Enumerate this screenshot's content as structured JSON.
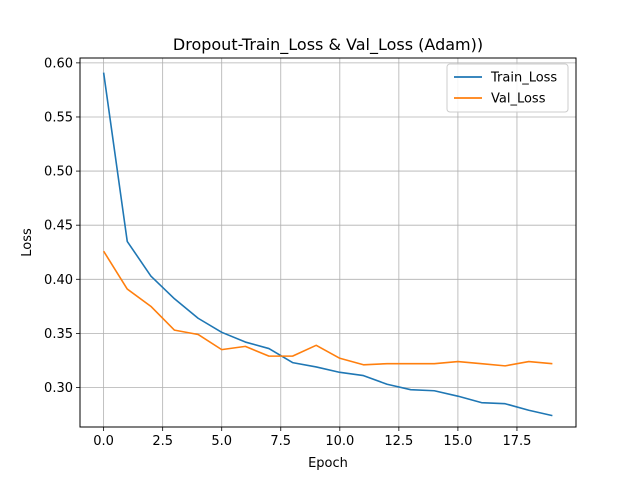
{
  "chart_data": {
    "type": "line",
    "title": "Dropout-Train_Loss & Val_Loss (Adam))",
    "xlabel": "Epoch",
    "ylabel": "Loss",
    "xlim": [
      -1.0,
      20.0
    ],
    "ylim": [
      0.2635,
      0.6045
    ],
    "xticks": [
      0.0,
      2.5,
      5.0,
      7.5,
      10.0,
      12.5,
      15.0,
      17.5
    ],
    "xtick_labels": [
      "0.0",
      "2.5",
      "5.0",
      "7.5",
      "10.0",
      "12.5",
      "15.0",
      "17.5"
    ],
    "yticks": [
      0.3,
      0.35,
      0.4,
      0.45,
      0.5,
      0.55,
      0.6
    ],
    "ytick_labels": [
      "0.30",
      "0.35",
      "0.40",
      "0.45",
      "0.50",
      "0.55",
      "0.60"
    ],
    "grid": true,
    "legend_position": "top-right",
    "x": [
      0,
      1,
      2,
      3,
      4,
      5,
      6,
      7,
      8,
      9,
      10,
      11,
      12,
      13,
      14,
      15,
      16,
      17,
      18,
      19
    ],
    "series": [
      {
        "name": "Train_Loss",
        "color": "#1f77b4",
        "values": [
          0.591,
          0.435,
          0.403,
          0.382,
          0.364,
          0.351,
          0.342,
          0.336,
          0.323,
          0.319,
          0.314,
          0.311,
          0.303,
          0.298,
          0.297,
          0.292,
          0.286,
          0.285,
          0.279,
          0.274
        ]
      },
      {
        "name": "Val_Loss",
        "color": "#ff7f0e",
        "values": [
          0.426,
          0.391,
          0.375,
          0.353,
          0.349,
          0.335,
          0.338,
          0.329,
          0.329,
          0.339,
          0.327,
          0.321,
          0.322,
          0.322,
          0.322,
          0.324,
          0.322,
          0.32,
          0.324,
          0.322
        ]
      }
    ]
  }
}
